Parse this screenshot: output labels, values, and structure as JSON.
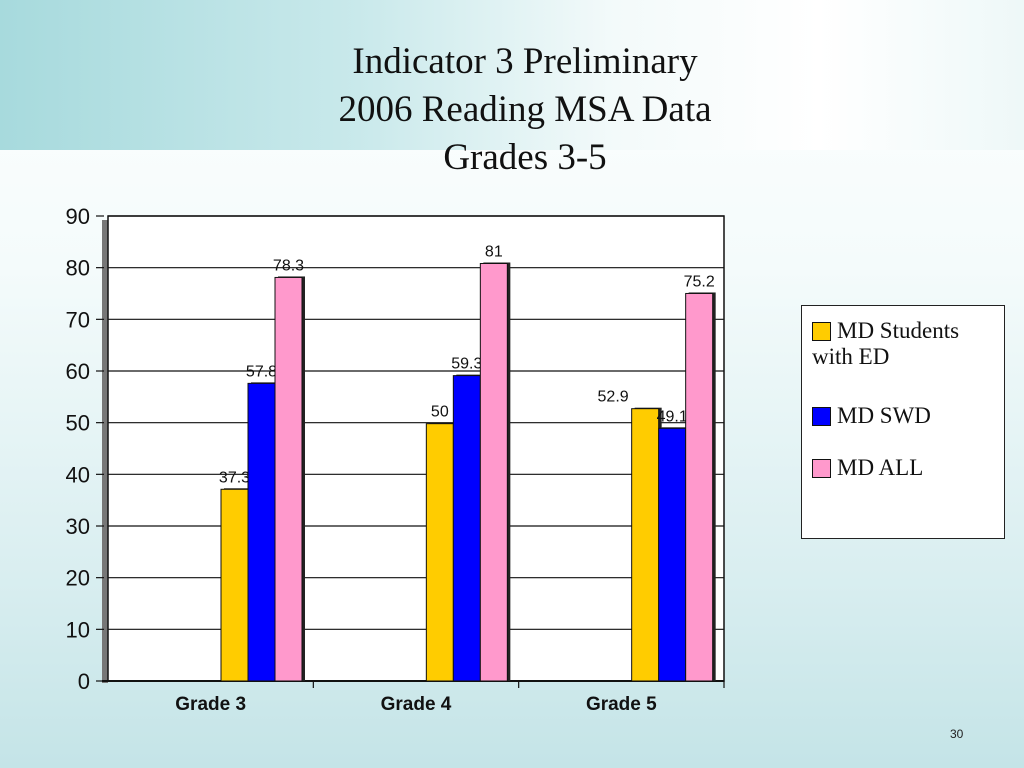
{
  "slide": {
    "title_lines": [
      "Indicator 3 Preliminary",
      "2006 Reading MSA Data",
      "Grades 3-5"
    ],
    "slide_number": "30"
  },
  "chart_data": {
    "type": "bar",
    "categories": [
      "Grade 3",
      "Grade 4",
      "Grade 5"
    ],
    "series": [
      {
        "name": "MD Students with ED",
        "color": "#FFCC00",
        "values": [
          37.3,
          50,
          52.9
        ]
      },
      {
        "name": "MD SWD",
        "color": "#0000FF",
        "values": [
          57.8,
          59.3,
          49.1
        ]
      },
      {
        "name": "MD ALL",
        "color": "#FF99CC",
        "values": [
          78.3,
          81,
          75.2
        ]
      }
    ],
    "data_labels": [
      [
        "37.3",
        "50",
        "52.9"
      ],
      [
        "57.8",
        "59.3",
        "49.1"
      ],
      [
        "78.3",
        "81",
        "75.2"
      ]
    ],
    "ylim": [
      0,
      90
    ],
    "yticks": [
      0,
      10,
      20,
      30,
      40,
      50,
      60,
      70,
      80,
      90
    ],
    "grid": true,
    "legend_position": "right"
  },
  "legend": {
    "line1": "MD Students",
    "line2": "with ED",
    "item2": "MD SWD",
    "item3": "MD ALL"
  }
}
